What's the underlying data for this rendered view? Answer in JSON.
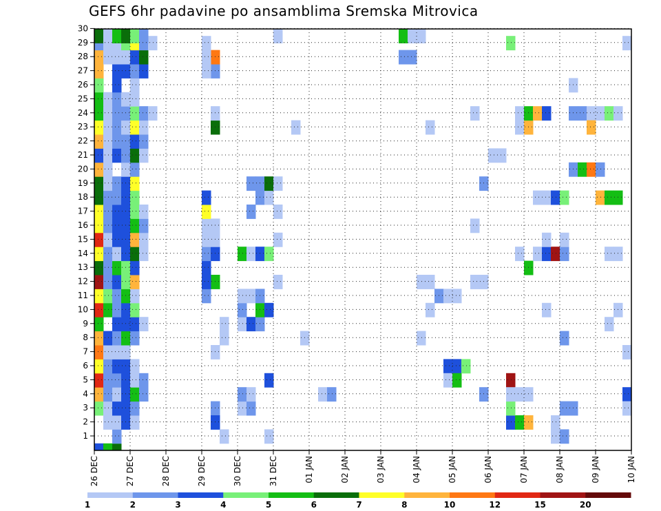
{
  "title": "GEFS 6hr padavine po ansamblima Sremska Mitrovica",
  "chart_data": {
    "type": "heatmap",
    "title": "GEFS 6hr padavine po ansamblima Sremska Mitrovica",
    "xlabel": "",
    "ylabel": "",
    "x_tick_labels": [
      "26 DEC",
      "27 DEC",
      "28 DEC",
      "29 DEC",
      "30 DEC",
      "31 DEC",
      "01 JAN",
      "02 JAN",
      "03 JAN",
      "04 JAN",
      "05 JAN",
      "06 JAN",
      "07 JAN",
      "08 JAN",
      "09 JAN",
      "10 JAN"
    ],
    "y_tick_labels": [
      "1",
      "2",
      "3",
      "4",
      "5",
      "6",
      "7",
      "8",
      "9",
      "10",
      "11",
      "12",
      "13",
      "14",
      "15",
      "16",
      "17",
      "18",
      "19",
      "20",
      "21",
      "22",
      "23",
      "24",
      "25",
      "26",
      "27",
      "28",
      "29",
      "30"
    ],
    "x_step": "6hr",
    "ylim": [
      0,
      30
    ],
    "grid": true,
    "colorbar": {
      "levels": [
        1,
        2,
        3,
        4,
        5,
        6,
        7,
        8,
        10,
        12,
        15,
        20
      ],
      "labels": [
        "1",
        "2",
        "3",
        "4",
        "5",
        "6",
        "7",
        "8",
        "10",
        "12",
        "15",
        "20"
      ],
      "colors": [
        "#b4c8f5",
        "#6e96eb",
        "#1e50dc",
        "#78f078",
        "#14be14",
        "#0a6e0a",
        "#ffff28",
        "#ffb43c",
        "#ff7814",
        "#e12814",
        "#a01414",
        "#640a0a"
      ]
    },
    "cells_note": "value = colour class index 0-11 (0: 1-2, 1: 2-3, 2: 3-4, 3: 4-5, 4: 5-6, 5: 6-7, 6: 7-8, 7: 8-10, 8: 10-12, 9: 12-15, 10: 15-20, 11: >20); x = 6-hour step index from 26 DEC 00Z",
    "cells": [
      [
        0,
        0,
        2
      ],
      [
        1,
        0,
        4
      ],
      [
        2,
        0,
        5
      ],
      [
        2,
        1,
        4
      ],
      [
        2,
        2,
        5
      ],
      [
        2,
        3,
        0
      ],
      [
        2,
        1,
        1
      ],
      [
        2,
        2,
        2
      ],
      [
        2,
        3,
        4
      ],
      [
        2,
        4,
        2
      ],
      [
        1,
        2,
        0
      ],
      [
        2,
        2,
        0
      ],
      [
        3,
        2,
        2
      ],
      [
        3,
        3,
        0
      ],
      [
        4,
        2,
        0
      ],
      [
        0,
        3,
        3
      ],
      [
        1,
        3,
        0
      ],
      [
        2,
        3,
        2
      ],
      [
        3,
        3,
        2
      ],
      [
        4,
        3,
        1
      ],
      [
        0,
        4,
        7
      ],
      [
        1,
        4,
        1
      ],
      [
        2,
        4,
        0
      ],
      [
        3,
        4,
        2
      ],
      [
        4,
        4,
        4
      ],
      [
        5,
        4,
        1
      ],
      [
        0,
        5,
        9
      ],
      [
        1,
        5,
        1
      ],
      [
        2,
        5,
        1
      ],
      [
        3,
        5,
        2
      ],
      [
        4,
        5,
        0
      ],
      [
        5,
        5,
        1
      ],
      [
        0,
        6,
        6
      ],
      [
        1,
        6,
        1
      ],
      [
        2,
        6,
        2
      ],
      [
        3,
        6,
        2
      ],
      [
        4,
        6,
        0
      ],
      [
        0,
        7,
        8
      ],
      [
        1,
        7,
        0
      ],
      [
        2,
        7,
        0
      ],
      [
        3,
        7,
        0
      ],
      [
        0,
        8,
        7
      ],
      [
        1,
        8,
        2
      ],
      [
        2,
        8,
        1
      ],
      [
        3,
        8,
        4
      ],
      [
        4,
        8,
        1
      ],
      [
        0,
        9,
        4
      ],
      [
        2,
        9,
        2
      ],
      [
        3,
        9,
        2
      ],
      [
        4,
        9,
        2
      ],
      [
        5,
        9,
        0
      ],
      [
        0,
        10,
        9
      ],
      [
        1,
        10,
        4
      ],
      [
        2,
        10,
        1
      ],
      [
        3,
        10,
        2
      ],
      [
        4,
        10,
        3
      ],
      [
        0,
        11,
        6
      ],
      [
        1,
        11,
        3
      ],
      [
        2,
        11,
        1
      ],
      [
        3,
        11,
        4
      ],
      [
        4,
        11,
        0
      ],
      [
        0,
        12,
        10
      ],
      [
        1,
        12,
        1
      ],
      [
        2,
        12,
        2
      ],
      [
        3,
        12,
        3
      ],
      [
        4,
        12,
        7
      ],
      [
        0,
        13,
        5
      ],
      [
        1,
        13,
        1
      ],
      [
        2,
        13,
        4
      ],
      [
        3,
        13,
        3
      ],
      [
        4,
        13,
        2
      ],
      [
        0,
        14,
        6
      ],
      [
        1,
        14,
        1
      ],
      [
        2,
        14,
        0
      ],
      [
        3,
        14,
        2
      ],
      [
        4,
        14,
        5
      ],
      [
        5,
        14,
        0
      ],
      [
        0,
        15,
        9
      ],
      [
        1,
        15,
        0
      ],
      [
        2,
        15,
        2
      ],
      [
        3,
        15,
        2
      ],
      [
        4,
        15,
        7
      ],
      [
        5,
        15,
        0
      ],
      [
        0,
        16,
        6
      ],
      [
        1,
        16,
        1
      ],
      [
        2,
        16,
        2
      ],
      [
        3,
        16,
        2
      ],
      [
        4,
        16,
        4
      ],
      [
        5,
        16,
        1
      ],
      [
        0,
        17,
        6
      ],
      [
        1,
        17,
        1
      ],
      [
        2,
        17,
        2
      ],
      [
        3,
        17,
        2
      ],
      [
        4,
        17,
        3
      ],
      [
        5,
        17,
        0
      ],
      [
        0,
        18,
        5
      ],
      [
        1,
        18,
        1
      ],
      [
        2,
        18,
        1
      ],
      [
        3,
        18,
        2
      ],
      [
        4,
        18,
        3
      ],
      [
        0,
        19,
        5
      ],
      [
        1,
        19,
        0
      ],
      [
        2,
        19,
        1
      ],
      [
        3,
        19,
        2
      ],
      [
        4,
        19,
        6
      ],
      [
        0,
        20,
        7
      ],
      [
        1,
        20,
        0
      ],
      [
        3,
        20,
        0
      ],
      [
        4,
        20,
        1
      ],
      [
        0,
        21,
        2
      ],
      [
        1,
        21,
        0
      ],
      [
        2,
        21,
        2
      ],
      [
        3,
        21,
        1
      ],
      [
        4,
        21,
        5
      ],
      [
        5,
        21,
        0
      ],
      [
        0,
        22,
        7
      ],
      [
        1,
        22,
        0
      ],
      [
        2,
        22,
        1
      ],
      [
        3,
        22,
        1
      ],
      [
        4,
        22,
        2
      ],
      [
        5,
        22,
        1
      ],
      [
        0,
        23,
        6
      ],
      [
        1,
        23,
        0
      ],
      [
        2,
        23,
        1
      ],
      [
        3,
        23,
        0
      ],
      [
        4,
        23,
        6
      ],
      [
        5,
        23,
        0
      ],
      [
        0,
        24,
        4
      ],
      [
        1,
        24,
        0
      ],
      [
        2,
        24,
        1
      ],
      [
        3,
        24,
        1
      ],
      [
        4,
        24,
        3
      ],
      [
        5,
        24,
        1
      ],
      [
        6,
        24,
        0
      ],
      [
        0,
        25,
        4
      ],
      [
        1,
        25,
        0
      ],
      [
        2,
        25,
        1
      ],
      [
        3,
        25,
        0
      ],
      [
        4,
        25,
        0
      ],
      [
        0,
        26,
        3
      ],
      [
        2,
        26,
        2
      ],
      [
        4,
        26,
        0
      ],
      [
        0,
        27,
        7
      ],
      [
        2,
        27,
        2
      ],
      [
        3,
        27,
        2
      ],
      [
        4,
        27,
        1
      ],
      [
        5,
        27,
        2
      ],
      [
        0,
        28,
        7
      ],
      [
        1,
        28,
        0
      ],
      [
        2,
        28,
        0
      ],
      [
        3,
        28,
        0
      ],
      [
        4,
        28,
        2
      ],
      [
        5,
        28,
        5
      ],
      [
        0,
        29,
        1
      ],
      [
        1,
        29,
        0
      ],
      [
        2,
        29,
        0
      ],
      [
        3,
        29,
        3
      ],
      [
        4,
        29,
        6
      ],
      [
        5,
        29,
        1
      ],
      [
        6,
        29,
        0
      ],
      [
        0,
        30,
        5
      ],
      [
        1,
        30,
        0
      ],
      [
        2,
        30,
        4
      ],
      [
        3,
        30,
        5
      ],
      [
        4,
        30,
        3
      ],
      [
        5,
        30,
        1
      ],
      [
        13,
        12,
        4
      ],
      [
        13,
        3,
        1
      ],
      [
        13,
        27,
        1
      ],
      [
        13,
        28,
        8
      ],
      [
        13,
        2,
        2
      ],
      [
        13,
        7,
        0
      ],
      [
        14,
        8,
        0
      ],
      [
        14,
        1,
        0
      ],
      [
        14,
        9,
        0
      ],
      [
        12,
        11,
        1
      ],
      [
        12,
        12,
        2
      ],
      [
        12,
        13,
        2
      ],
      [
        12,
        14,
        1
      ],
      [
        12,
        15,
        0
      ],
      [
        12,
        16,
        0
      ],
      [
        12,
        17,
        6
      ],
      [
        12,
        18,
        2
      ],
      [
        12,
        27,
        0
      ],
      [
        12,
        28,
        0
      ],
      [
        12,
        29,
        0
      ],
      [
        13,
        14,
        2
      ],
      [
        13,
        15,
        0
      ],
      [
        13,
        16,
        0
      ],
      [
        13,
        23,
        5
      ],
      [
        13,
        24,
        0
      ],
      [
        16,
        3,
        0
      ],
      [
        17,
        3,
        1
      ],
      [
        16,
        4,
        1
      ],
      [
        17,
        4,
        0
      ],
      [
        16,
        9,
        0
      ],
      [
        17,
        9,
        2
      ],
      [
        18,
        9,
        1
      ],
      [
        16,
        10,
        1
      ],
      [
        18,
        10,
        4
      ],
      [
        19,
        10,
        2
      ],
      [
        16,
        11,
        0
      ],
      [
        17,
        11,
        0
      ],
      [
        18,
        11,
        1
      ],
      [
        16,
        14,
        4
      ],
      [
        17,
        14,
        0
      ],
      [
        18,
        14,
        2
      ],
      [
        19,
        14,
        3
      ],
      [
        17,
        17,
        1
      ],
      [
        18,
        18,
        1
      ],
      [
        19,
        18,
        0
      ],
      [
        17,
        19,
        1
      ],
      [
        18,
        19,
        1
      ],
      [
        19,
        19,
        5
      ],
      [
        20,
        19,
        0
      ],
      [
        19,
        1,
        0
      ],
      [
        19,
        5,
        2
      ],
      [
        20,
        12,
        0
      ],
      [
        20,
        15,
        0
      ],
      [
        20,
        17,
        0
      ],
      [
        20,
        30,
        0
      ],
      [
        22,
        23,
        0
      ],
      [
        23,
        8,
        0
      ],
      [
        25,
        4,
        0
      ],
      [
        26,
        4,
        1
      ],
      [
        34,
        28,
        1
      ],
      [
        35,
        28,
        1
      ],
      [
        34,
        30,
        4
      ],
      [
        35,
        30,
        0
      ],
      [
        36,
        30,
        0
      ],
      [
        36,
        12,
        0
      ],
      [
        37,
        12,
        0
      ],
      [
        36,
        8,
        0
      ],
      [
        37,
        10,
        0
      ],
      [
        37,
        23,
        0
      ],
      [
        38,
        11,
        1
      ],
      [
        39,
        11,
        0
      ],
      [
        40,
        11,
        0
      ],
      [
        39,
        6,
        2
      ],
      [
        40,
        6,
        2
      ],
      [
        39,
        5,
        0
      ],
      [
        40,
        5,
        4
      ],
      [
        41,
        6,
        3
      ],
      [
        42,
        12,
        0
      ],
      [
        43,
        12,
        0
      ],
      [
        42,
        16,
        0
      ],
      [
        43,
        19,
        1
      ],
      [
        42,
        24,
        0
      ],
      [
        43,
        4,
        1
      ],
      [
        44,
        21,
        0
      ],
      [
        45,
        21,
        0
      ],
      [
        46,
        29,
        3
      ],
      [
        46,
        5,
        10
      ],
      [
        46,
        2,
        2
      ],
      [
        47,
        2,
        4
      ],
      [
        48,
        2,
        7
      ],
      [
        46,
        3,
        3
      ],
      [
        46,
        4,
        0
      ],
      [
        47,
        4,
        0
      ],
      [
        48,
        4,
        0
      ],
      [
        47,
        23,
        0
      ],
      [
        48,
        23,
        7
      ],
      [
        47,
        24,
        0
      ],
      [
        48,
        24,
        4
      ],
      [
        49,
        24,
        7
      ],
      [
        50,
        24,
        2
      ],
      [
        47,
        14,
        0
      ],
      [
        48,
        13,
        4
      ],
      [
        49,
        14,
        0
      ],
      [
        49,
        18,
        0
      ],
      [
        50,
        18,
        0
      ],
      [
        51,
        18,
        2
      ],
      [
        52,
        18,
        3
      ],
      [
        50,
        10,
        0
      ],
      [
        50,
        14,
        2
      ],
      [
        51,
        14,
        10
      ],
      [
        52,
        14,
        1
      ],
      [
        50,
        15,
        0
      ],
      [
        52,
        15,
        0
      ],
      [
        51,
        1,
        0
      ],
      [
        52,
        1,
        1
      ],
      [
        51,
        2,
        0
      ],
      [
        52,
        3,
        1
      ],
      [
        53,
        3,
        1
      ],
      [
        52,
        8,
        1
      ],
      [
        53,
        24,
        1
      ],
      [
        54,
        24,
        1
      ],
      [
        55,
        24,
        0
      ],
      [
        56,
        24,
        0
      ],
      [
        57,
        24,
        3
      ],
      [
        58,
        24,
        0
      ],
      [
        53,
        26,
        0
      ],
      [
        53,
        20,
        1
      ],
      [
        54,
        20,
        4
      ],
      [
        55,
        20,
        8
      ],
      [
        56,
        20,
        1
      ],
      [
        56,
        18,
        7
      ],
      [
        57,
        18,
        4
      ],
      [
        58,
        18,
        4
      ],
      [
        55,
        23,
        7
      ],
      [
        57,
        9,
        0
      ],
      [
        58,
        10,
        0
      ],
      [
        57,
        14,
        0
      ],
      [
        58,
        14,
        0
      ],
      [
        59,
        4,
        2
      ],
      [
        59,
        3,
        0
      ],
      [
        59,
        7,
        0
      ],
      [
        59,
        29,
        0
      ]
    ]
  }
}
